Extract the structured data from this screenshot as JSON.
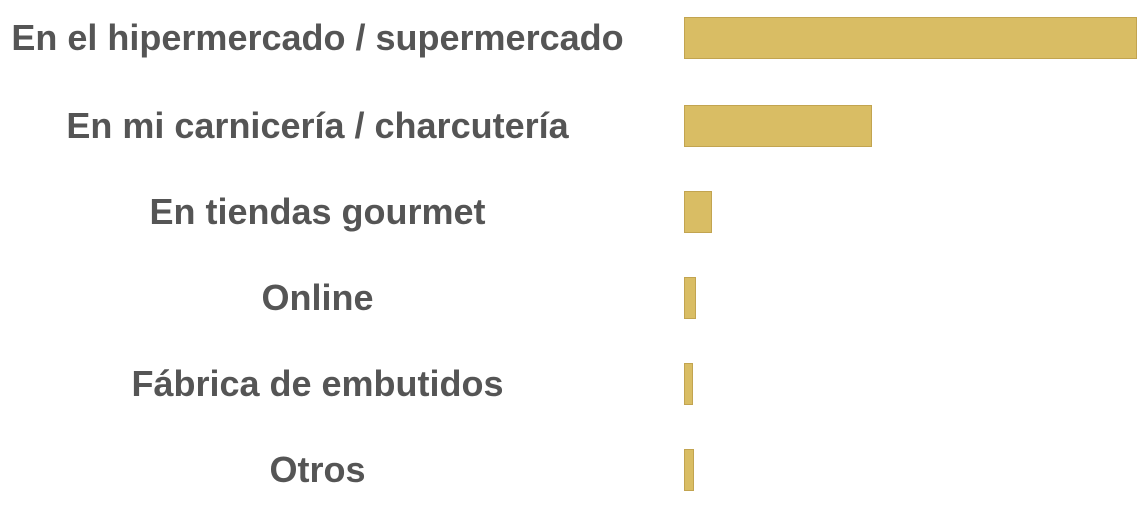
{
  "chart_data": {
    "type": "bar",
    "orientation": "horizontal",
    "categories": [
      "En el hipermercado / supermercado",
      "En mi carnicería / charcutería",
      "En tiendas gourmet",
      "Online",
      "Fábrica de embutidos",
      "Otros"
    ],
    "values": [
      65,
      27,
      4,
      1.7,
      1.3,
      1.4
    ],
    "color": "#d9bd64",
    "xlim": [
      0,
      65
    ]
  }
}
